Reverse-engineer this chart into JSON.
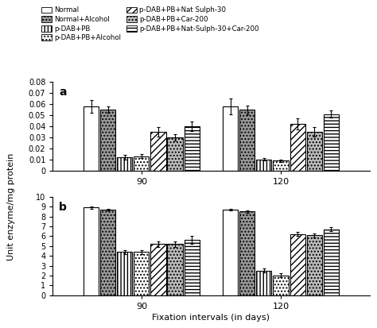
{
  "ylabel": "Unit enzyme/mg protein",
  "xlabel": "Fixation intervals (in days)",
  "legend_labels": [
    "Normal",
    "Normal+Alcohol",
    "p-DAB+PB",
    "p-DAB+PB+Alcohol",
    "p-DAB+PB+Nat Sulph-30",
    "p-DAB+PB+Car-200",
    "p-DAB+PB+Nat-Sulph-30+Car-200"
  ],
  "panel_a": {
    "label": "a",
    "ylim": [
      0,
      0.08
    ],
    "yticks": [
      0,
      0.01,
      0.02,
      0.03,
      0.04,
      0.05,
      0.06,
      0.07,
      0.08
    ],
    "ytick_labels": [
      "0",
      "0.01",
      "0.02",
      "0.03",
      "0.04",
      "0.05",
      "0.06",
      "0.07",
      "0.08"
    ],
    "groups": [
      {
        "label": "90",
        "values": [
          0.058,
          0.055,
          0.012,
          0.013,
          0.035,
          0.03,
          0.04
        ],
        "errors": [
          0.006,
          0.003,
          0.002,
          0.002,
          0.004,
          0.003,
          0.004
        ]
      },
      {
        "label": "120",
        "values": [
          0.058,
          0.055,
          0.01,
          0.009,
          0.042,
          0.035,
          0.051
        ],
        "errors": [
          0.007,
          0.004,
          0.001,
          0.001,
          0.005,
          0.004,
          0.003
        ]
      }
    ]
  },
  "panel_b": {
    "label": "b",
    "ylim": [
      0,
      10
    ],
    "yticks": [
      0,
      1,
      2,
      3,
      4,
      5,
      6,
      7,
      8,
      9,
      10
    ],
    "ytick_labels": [
      "0",
      "1",
      "2",
      "3",
      "4",
      "5",
      "6",
      "7",
      "8",
      "9",
      "10"
    ],
    "groups": [
      {
        "label": "90",
        "values": [
          8.9,
          8.7,
          4.4,
          4.4,
          5.2,
          5.2,
          5.6
        ],
        "errors": [
          0.1,
          0.1,
          0.2,
          0.2,
          0.3,
          0.3,
          0.4
        ]
      },
      {
        "label": "120",
        "values": [
          8.7,
          8.5,
          2.5,
          2.0,
          6.2,
          6.1,
          6.7
        ],
        "errors": [
          0.1,
          0.1,
          0.2,
          0.2,
          0.2,
          0.2,
          0.2
        ]
      }
    ]
  },
  "bar_styles": [
    {
      "facecolor": "white",
      "hatch": "",
      "edgecolor": "black",
      "lw": 0.8
    },
    {
      "facecolor": "#999999",
      "hatch": "....",
      "edgecolor": "black",
      "lw": 0.8
    },
    {
      "facecolor": "white",
      "hatch": "||||",
      "edgecolor": "black",
      "lw": 0.8
    },
    {
      "facecolor": "white",
      "hatch": "....",
      "edgecolor": "black",
      "lw": 0.8
    },
    {
      "facecolor": "white",
      "hatch": "////",
      "edgecolor": "black",
      "lw": 0.8
    },
    {
      "facecolor": "#bbbbbb",
      "hatch": "....",
      "edgecolor": "black",
      "lw": 0.8
    },
    {
      "facecolor": "white",
      "hatch": "----",
      "edgecolor": "black",
      "lw": 0.8
    }
  ],
  "group_centers": [
    0.28,
    0.72
  ],
  "bar_width": 0.048,
  "bar_spacing": 0.053
}
